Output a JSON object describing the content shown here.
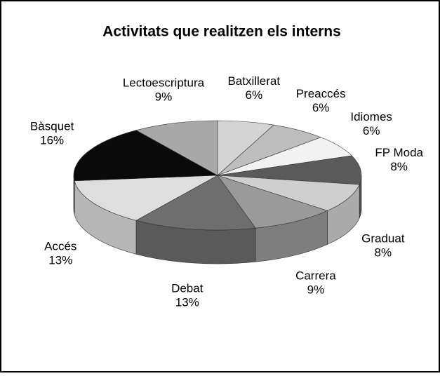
{
  "chart_data": {
    "type": "pie3d",
    "title": "Activitats que realitzen els interns",
    "categories": [
      "Batxillerat",
      "Preaccés",
      "Idiomes",
      "FP Moda",
      "Graduat",
      "Carrera",
      "Debat",
      "Accés",
      "Bàsquet",
      "Lectoescriptura"
    ],
    "values": [
      6,
      6,
      6,
      8,
      8,
      9,
      13,
      13,
      16,
      9
    ],
    "value_labels": [
      "6%",
      "6%",
      "6%",
      "8%",
      "8%",
      "9%",
      "13%",
      "13%",
      "16%",
      "9%"
    ],
    "colors": [
      "#d4d4d4",
      "#bdbdbd",
      "#f2f2f2",
      "#5a5a5a",
      "#cfcfcf",
      "#9a9a9a",
      "#6e6e6e",
      "#dedede",
      "#0a0a0a",
      "#a8a8a8"
    ]
  }
}
